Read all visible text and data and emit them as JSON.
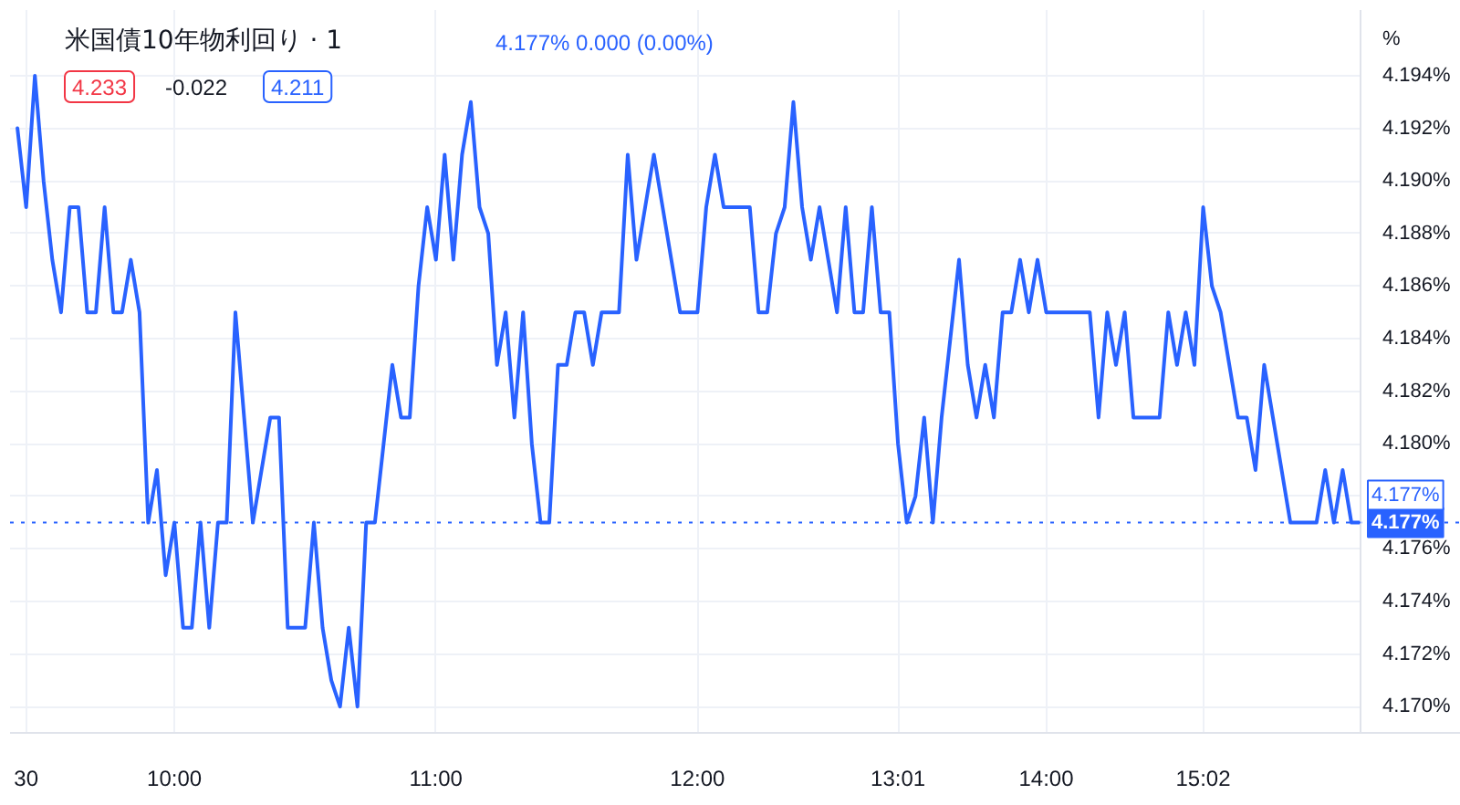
{
  "chart_data": {
    "type": "line",
    "title": "米国債10年物利回り · 1",
    "subtitle": "4.177% 0.000 (0.00%)",
    "ylabel": "%",
    "annotations": [
      "4.233",
      "-0.022",
      "4.211",
      {
        "text": "4.177%",
        "y": 4.177
      }
    ],
    "categories": [
      null,
      "30",
      null,
      null,
      null,
      null,
      null,
      null,
      null,
      null,
      null,
      null,
      null,
      null,
      null,
      null,
      null,
      null,
      "10:00",
      null,
      null,
      null,
      null,
      null,
      null,
      null,
      null,
      null,
      null,
      null,
      null,
      null,
      null,
      null,
      null,
      null,
      null,
      null,
      null,
      null,
      null,
      null,
      null,
      null,
      null,
      null,
      null,
      null,
      "11:00",
      null,
      null,
      null,
      null,
      null,
      null,
      null,
      null,
      null,
      null,
      null,
      null,
      null,
      null,
      null,
      null,
      null,
      null,
      null,
      null,
      null,
      null,
      null,
      null,
      null,
      null,
      null,
      null,
      null,
      "12:00",
      null,
      null,
      null,
      null,
      null,
      null,
      null,
      null,
      null,
      null,
      null,
      null,
      null,
      null,
      null,
      null,
      null,
      null,
      null,
      null,
      null,
      null,
      "13:01",
      null,
      null,
      null,
      null,
      null,
      null,
      null,
      null,
      null,
      null,
      null,
      null,
      null,
      null,
      null,
      null,
      "14:00",
      null,
      null,
      null,
      null,
      null,
      null,
      null,
      null,
      null,
      null,
      null,
      null,
      null,
      null,
      null,
      null,
      null,
      "15:02",
      null,
      null,
      null,
      null,
      null,
      null,
      null,
      null,
      null,
      null,
      null,
      null,
      null,
      null,
      null,
      null,
      null,
      null
    ],
    "series": [
      {
        "color": "#2962ff",
        "values": [
          4.192,
          4.189,
          4.194,
          4.19,
          4.187,
          4.185,
          4.189,
          4.189,
          4.185,
          4.185,
          4.189,
          4.185,
          4.185,
          4.187,
          4.185,
          4.177,
          4.179,
          4.175,
          4.177,
          4.173,
          4.173,
          4.177,
          4.173,
          4.177,
          4.177,
          4.185,
          4.181,
          4.177,
          4.179,
          4.181,
          4.181,
          4.173,
          4.173,
          4.173,
          4.177,
          4.173,
          4.171,
          4.17,
          4.173,
          4.17,
          4.177,
          4.177,
          4.18,
          4.183,
          4.181,
          4.181,
          4.186,
          4.189,
          4.187,
          4.191,
          4.187,
          4.191,
          4.193,
          4.189,
          4.188,
          4.183,
          4.185,
          4.181,
          4.185,
          4.18,
          4.177,
          4.177,
          4.183,
          4.183,
          4.185,
          4.185,
          4.183,
          4.185,
          4.185,
          4.185,
          4.191,
          4.187,
          4.189,
          4.191,
          4.189,
          4.187,
          4.185,
          4.185,
          4.185,
          4.189,
          4.191,
          4.189,
          4.189,
          4.189,
          4.189,
          4.185,
          4.185,
          4.188,
          4.189,
          4.193,
          4.189,
          4.187,
          4.189,
          4.187,
          4.185,
          4.189,
          4.185,
          4.185,
          4.189,
          4.185,
          4.185,
          4.18,
          4.177,
          4.178,
          4.181,
          4.177,
          4.181,
          4.184,
          4.187,
          4.183,
          4.181,
          4.183,
          4.181,
          4.185,
          4.185,
          4.187,
          4.185,
          4.187,
          4.185,
          4.185,
          4.185,
          4.185,
          4.185,
          4.185,
          4.181,
          4.185,
          4.183,
          4.185,
          4.181,
          4.181,
          4.181,
          4.181,
          4.185,
          4.183,
          4.185,
          4.183,
          4.189,
          4.186,
          4.185,
          4.183,
          4.181,
          4.181,
          4.179,
          4.183,
          4.181,
          4.179,
          4.177,
          4.177,
          4.177,
          4.177,
          4.179,
          4.177,
          4.179,
          4.177,
          4.177
        ]
      }
    ],
    "ylim": [
      4.169,
      4.1965
    ],
    "yticks": [
      {
        "value": 4.17,
        "label": "4.170%"
      },
      {
        "value": 4.172,
        "label": "4.172%"
      },
      {
        "value": 4.174,
        "label": "4.174%"
      },
      {
        "value": 4.176,
        "label": "4.176%"
      },
      {
        "value": 4.178,
        "label": null
      },
      {
        "value": 4.18,
        "label": "4.180%"
      },
      {
        "value": 4.182,
        "label": "4.182%"
      },
      {
        "value": 4.184,
        "label": "4.184%"
      },
      {
        "value": 4.186,
        "label": "4.186%"
      },
      {
        "value": 4.188,
        "label": "4.188%"
      },
      {
        "value": 4.19,
        "label": "4.190%"
      },
      {
        "value": 4.192,
        "label": "4.192%"
      },
      {
        "value": 4.194,
        "label": "4.194%"
      }
    ],
    "ref_lines": [
      {
        "axis": "y",
        "value": 4.177,
        "label": "4.177%",
        "color": "#2962ff",
        "line_style": "dotted"
      }
    ],
    "grid": true,
    "line_style": "solid"
  }
}
